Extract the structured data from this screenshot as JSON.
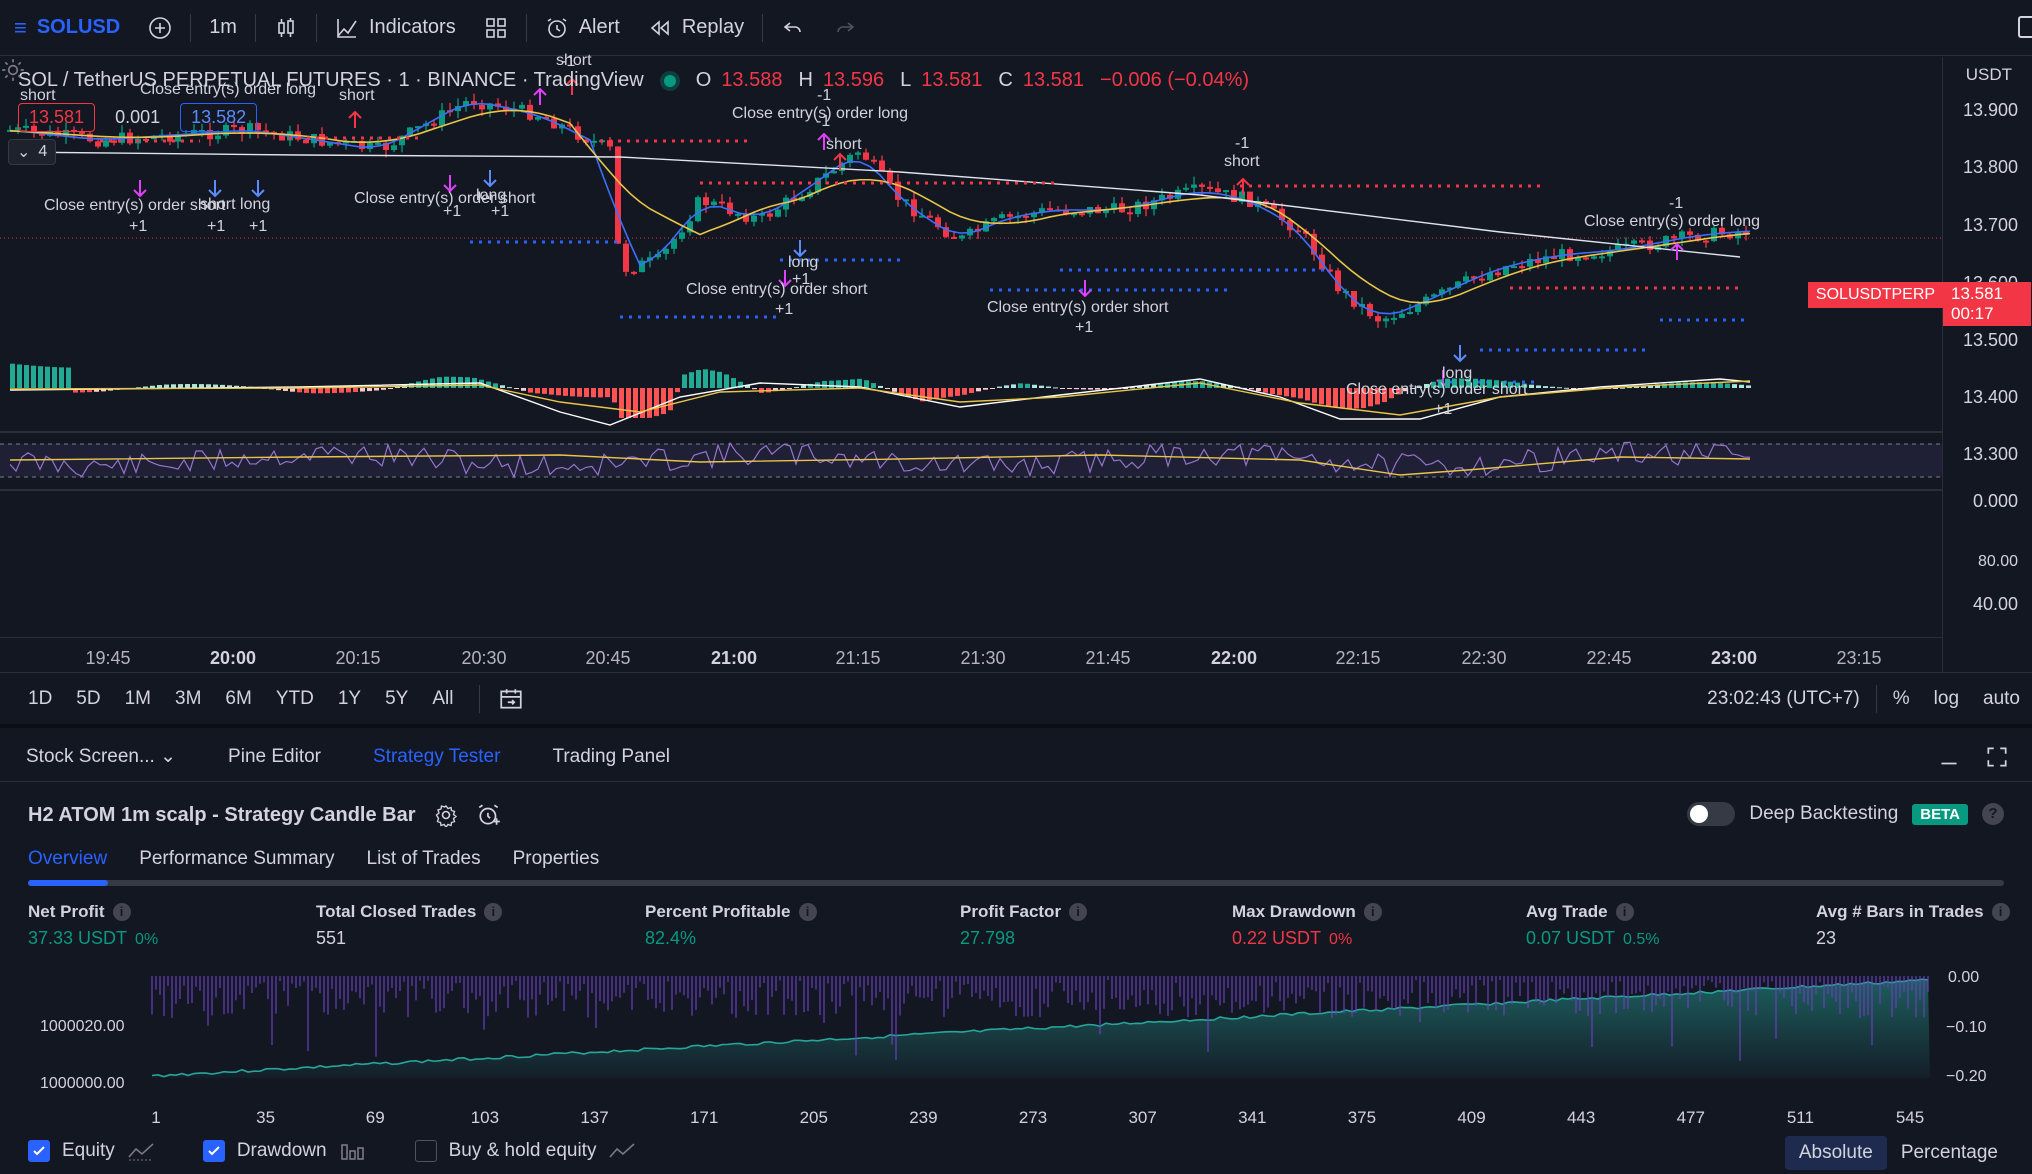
{
  "toolbar": {
    "symbol": "SOLUSD",
    "interval": "1m",
    "indicators_label": "Indicators",
    "alert_label": "Alert",
    "replay_label": "Replay"
  },
  "chart": {
    "title": "SOL / TetherUS PERPETUAL FUTURES · 1 · BINANCE · TradingView",
    "ohlc": {
      "o_label": "O",
      "o": "13.588",
      "h_label": "H",
      "h": "13.596",
      "l_label": "L",
      "l": "13.581",
      "c_label": "C",
      "c": "13.581",
      "change": "−0.006 (−0.04%)"
    },
    "sell_price": "13.581",
    "spread": "0.001",
    "buy_price": "13.582",
    "indicator_count": "4",
    "currency": "USDT",
    "price_labels": [
      "13.900",
      "13.800",
      "13.700",
      "13.600",
      "13.500",
      "13.400",
      "13.300"
    ],
    "macd_label": "0.000",
    "rsi_labels": [
      "80.00",
      "40.00"
    ],
    "symbol_tag": "SOLUSDTPERP",
    "last_price": "13.581",
    "countdown": "00:17",
    "time_labels": [
      "19:45",
      "20:00",
      "20:15",
      "20:30",
      "20:45",
      "21:00",
      "21:15",
      "21:30",
      "21:45",
      "22:00",
      "22:15",
      "22:30",
      "22:45",
      "23:00",
      "23:15"
    ],
    "annotations": {
      "a1": "short",
      "a2": "Close entry(s) order long",
      "a3": "short",
      "a4": "Close entry(s) order short",
      "a5": "+1",
      "a6": "short long",
      "a7": "+1",
      "a8": "+1",
      "a9": "Close entry(s) order short",
      "a10": "long",
      "a11": "+1",
      "a12": "+1",
      "a13": "-1",
      "a14": "Close entry(s) order long",
      "a15": "-1",
      "a16": "short",
      "a17": "long",
      "a18": "+1",
      "a19": "Close entry(s) order short",
      "a20": "+1",
      "a21": "Close entry(s) order short",
      "a22": "+1",
      "a23": "-1",
      "a24": "short",
      "a25": "-1",
      "a26": "Close entry(s) order long",
      "a27": "long",
      "a28": "Close entry(s) order short",
      "a29": "+1",
      "a30": "-1",
      "a31": "short"
    }
  },
  "rangebar": {
    "ranges": [
      "1D",
      "5D",
      "1M",
      "3M",
      "6M",
      "YTD",
      "1Y",
      "5Y",
      "All"
    ],
    "clock": "23:02:43 (UTC+7)",
    "percent": "%",
    "log": "log",
    "auto": "auto"
  },
  "panel": {
    "tabs": [
      "Stock Screen...",
      "Pine Editor",
      "Strategy Tester",
      "Trading Panel"
    ],
    "strategy_name": "H2 ATOM 1m scalp - Strategy Candle Bar",
    "deep_backtesting": "Deep Backtesting",
    "beta": "BETA",
    "subtabs": [
      "Overview",
      "Performance Summary",
      "List of Trades",
      "Properties"
    ],
    "metrics": {
      "net_profit": {
        "label": "Net Profit",
        "value": "37.33 USDT",
        "pct": "0%"
      },
      "total_closed": {
        "label": "Total Closed Trades",
        "value": "551"
      },
      "percent_profitable": {
        "label": "Percent Profitable",
        "value": "82.4%"
      },
      "profit_factor": {
        "label": "Profit Factor",
        "value": "27.798"
      },
      "max_drawdown": {
        "label": "Max Drawdown",
        "value": "0.22 USDT",
        "pct": "0%"
      },
      "avg_trade": {
        "label": "Avg Trade",
        "value": "0.07 USDT",
        "pct": "0.5%"
      },
      "avg_bars": {
        "label": "Avg # Bars in Trades",
        "value": "23"
      }
    },
    "equity_chart": {
      "left_labels": [
        "1000020.00",
        "1000000.00"
      ],
      "right_labels": [
        "0.00",
        "−0.10",
        "−0.20"
      ],
      "x_labels": [
        "1",
        "35",
        "69",
        "103",
        "137",
        "171",
        "205",
        "239",
        "273",
        "307",
        "341",
        "375",
        "409",
        "443",
        "477",
        "511",
        "545"
      ]
    },
    "legend": {
      "equity": "Equity",
      "drawdown": "Drawdown",
      "buy_hold": "Buy & hold equity"
    },
    "mode": {
      "absolute": "Absolute",
      "percentage": "Percentage"
    }
  },
  "colors": {
    "background": "#131722",
    "up": "#089981",
    "down": "#f23645",
    "accent": "#2962ff"
  }
}
